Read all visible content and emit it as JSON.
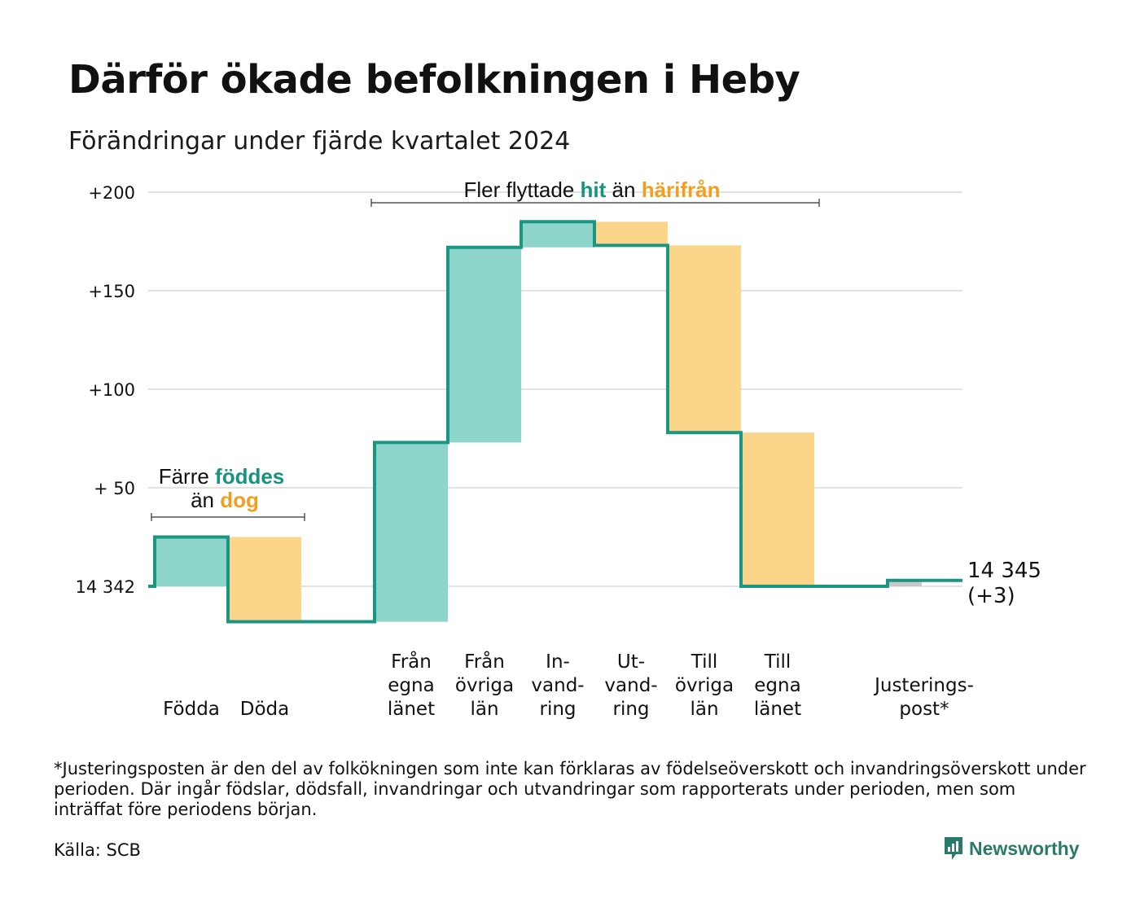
{
  "title": "Därför ökade befolkningen i Heby",
  "subtitle": "Förändringar under fjärde kvartalet 2024",
  "colors": {
    "positive": "#8dd5cb",
    "negative": "#fad58a",
    "line": "#1a9682",
    "adjustment": "#c8c8c8",
    "grid": "#e2e2e2",
    "accent_pos_text": "#17937f",
    "accent_neg_text": "#f29e1f"
  },
  "chart_data": {
    "type": "waterfall",
    "start_value": 14342,
    "start_label": "14 342",
    "end_value": 14345,
    "end_label": "14 345",
    "end_change_label": "(+3)",
    "y_ticks": [
      {
        "value": 50,
        "label": "+ 50"
      },
      {
        "value": 100,
        "label": "+100"
      },
      {
        "value": 150,
        "label": "+150"
      },
      {
        "value": 200,
        "label": "+200"
      }
    ],
    "ylim": [
      -22,
      205
    ],
    "grid": true,
    "categories": [
      {
        "id": "fodda",
        "label": [
          "Födda"
        ],
        "change": 25,
        "kind": "positive"
      },
      {
        "id": "doda",
        "label": [
          "Döda"
        ],
        "change": -43,
        "kind": "negative"
      },
      {
        "id": "gap",
        "label": [],
        "change": 0,
        "kind": "none"
      },
      {
        "id": "fran-egna-lanet",
        "label": [
          "Från",
          "egna",
          "länet"
        ],
        "change": 91,
        "kind": "positive"
      },
      {
        "id": "fran-ovriga-lan",
        "label": [
          "Från",
          "övriga",
          "län"
        ],
        "change": 99,
        "kind": "positive"
      },
      {
        "id": "invandring",
        "label": [
          "In-",
          "vand-",
          "ring"
        ],
        "change": 13,
        "kind": "positive"
      },
      {
        "id": "utvandring",
        "label": [
          "Ut-",
          "vand-",
          "ring"
        ],
        "change": -12,
        "kind": "negative"
      },
      {
        "id": "till-ovriga-lan",
        "label": [
          "Till",
          "övriga",
          "län"
        ],
        "change": -95,
        "kind": "negative"
      },
      {
        "id": "till-egna-lanet",
        "label": [
          "Till",
          "egna",
          "länet"
        ],
        "change": -78,
        "kind": "negative"
      },
      {
        "id": "gap2",
        "label": [],
        "change": 0,
        "kind": "none"
      },
      {
        "id": "justeringspost",
        "label": [
          "Justerings-",
          "post*"
        ],
        "change": 3,
        "kind": "adjustment"
      }
    ],
    "annotations": {
      "births_deaths": {
        "line1_prefix": "Färre ",
        "line1_highlight": "föddes",
        "line2_prefix": "än ",
        "line2_highlight": "dog"
      },
      "migration": {
        "prefix": "Fler flyttade ",
        "highlight_pos": "hit",
        "middle": " än ",
        "highlight_neg": "härifrån"
      }
    }
  },
  "footnote": "*Justeringsposten är den del av folkökningen som inte kan förklaras av födelseöverskott och invandringsöverskott under perioden. Där ingår födslar, dödsfall, invandringar och utvandringar som rapporterats under perioden, men som inträffat före periodens början.",
  "source": "Källa: SCB",
  "brand": {
    "name": "Newsworthy",
    "icon": "newsworthy-logo-icon"
  }
}
